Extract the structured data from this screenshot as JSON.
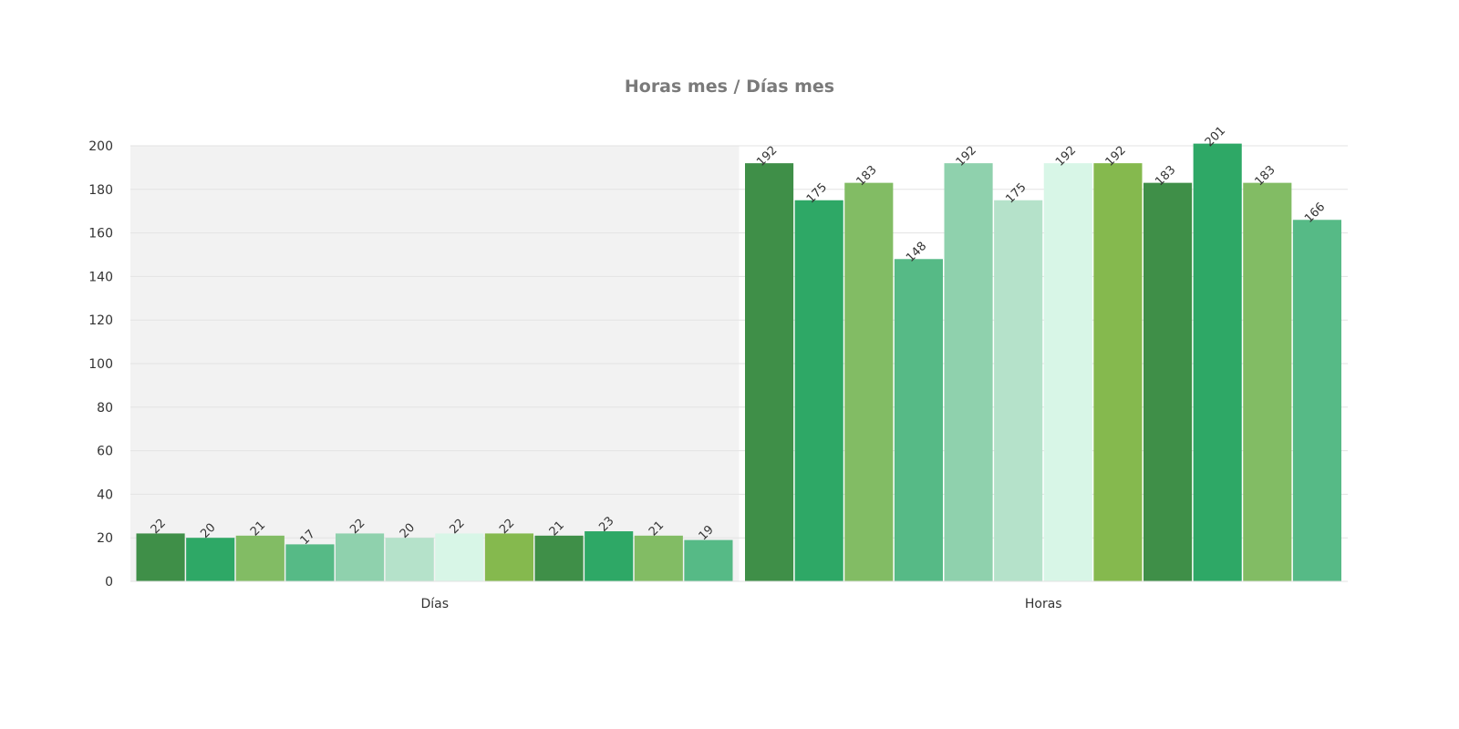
{
  "chart_data": {
    "type": "bar",
    "title": "Horas mes / Días mes",
    "categories": [
      "Días",
      "Horas"
    ],
    "ylim": [
      0,
      200
    ],
    "yticks": [
      0,
      20,
      40,
      60,
      80,
      100,
      120,
      140,
      160,
      180,
      200
    ],
    "grid": true,
    "legend": "none",
    "highlighted_category": "Días",
    "colors": [
      "#3f8f48",
      "#2ea866",
      "#82bc64",
      "#56ba86",
      "#8fd1ad",
      "#b5e2ca",
      "#d8f6e7",
      "#85b94e",
      "#3f8f48",
      "#2ea866",
      "#82bc64",
      "#56ba86"
    ],
    "groups": [
      {
        "category": "Días",
        "values": [
          22,
          20,
          21,
          17,
          22,
          20,
          22,
          22,
          21,
          23,
          21,
          19
        ]
      },
      {
        "category": "Horas",
        "values": [
          192,
          175,
          183,
          148,
          192,
          175,
          192,
          192,
          183,
          201,
          183,
          166
        ]
      }
    ]
  }
}
